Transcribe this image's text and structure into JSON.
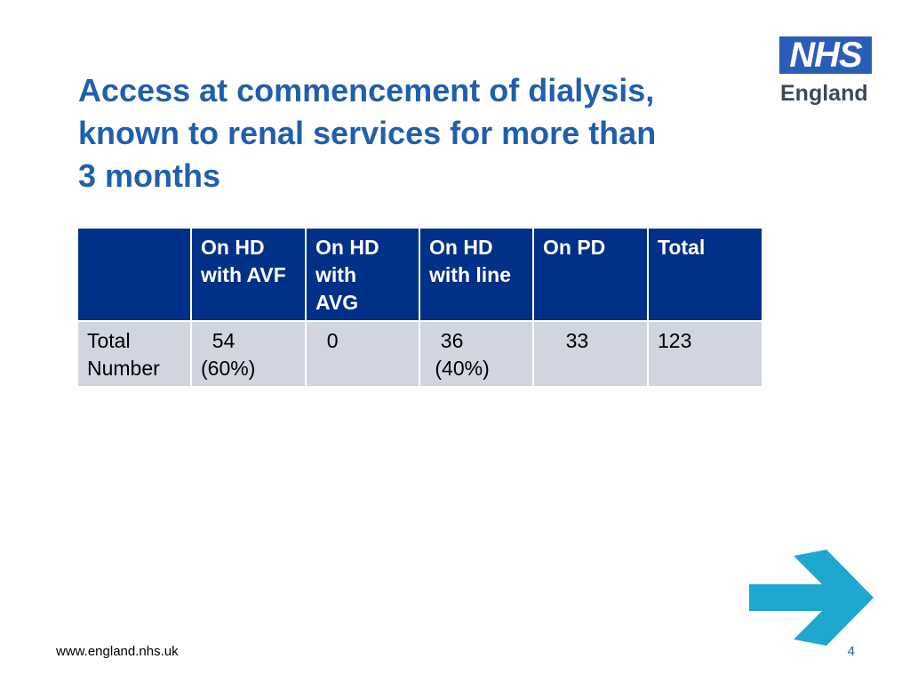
{
  "slide": {
    "title_lines": [
      "Access at commencement of dialysis,",
      "known to renal services for more than",
      "3 months"
    ],
    "logo": {
      "mark": "NHS",
      "subtitle": "England"
    },
    "table": {
      "headers": [
        "",
        "On HD\nwith AVF",
        "On HD\nwith\nAVG",
        "On HD\nwith line",
        "On PD",
        "Total"
      ],
      "rows": [
        [
          "Total\nNumber",
          "  54\n(60%)",
          "  0",
          "  36\n (40%)",
          "    33",
          "123"
        ]
      ]
    },
    "footer": {
      "url": "www.england.nhs.uk",
      "page_number": "4"
    },
    "colors": {
      "title": "#1f5fae",
      "table_header_bg": "#003087",
      "table_row_bg": "#d2d4e0",
      "logo_blue": "#2a5db8",
      "arrow": "#1ea7cf"
    },
    "icons": {
      "logo": "nhs-england-logo",
      "next": "right-arrow-icon"
    }
  }
}
